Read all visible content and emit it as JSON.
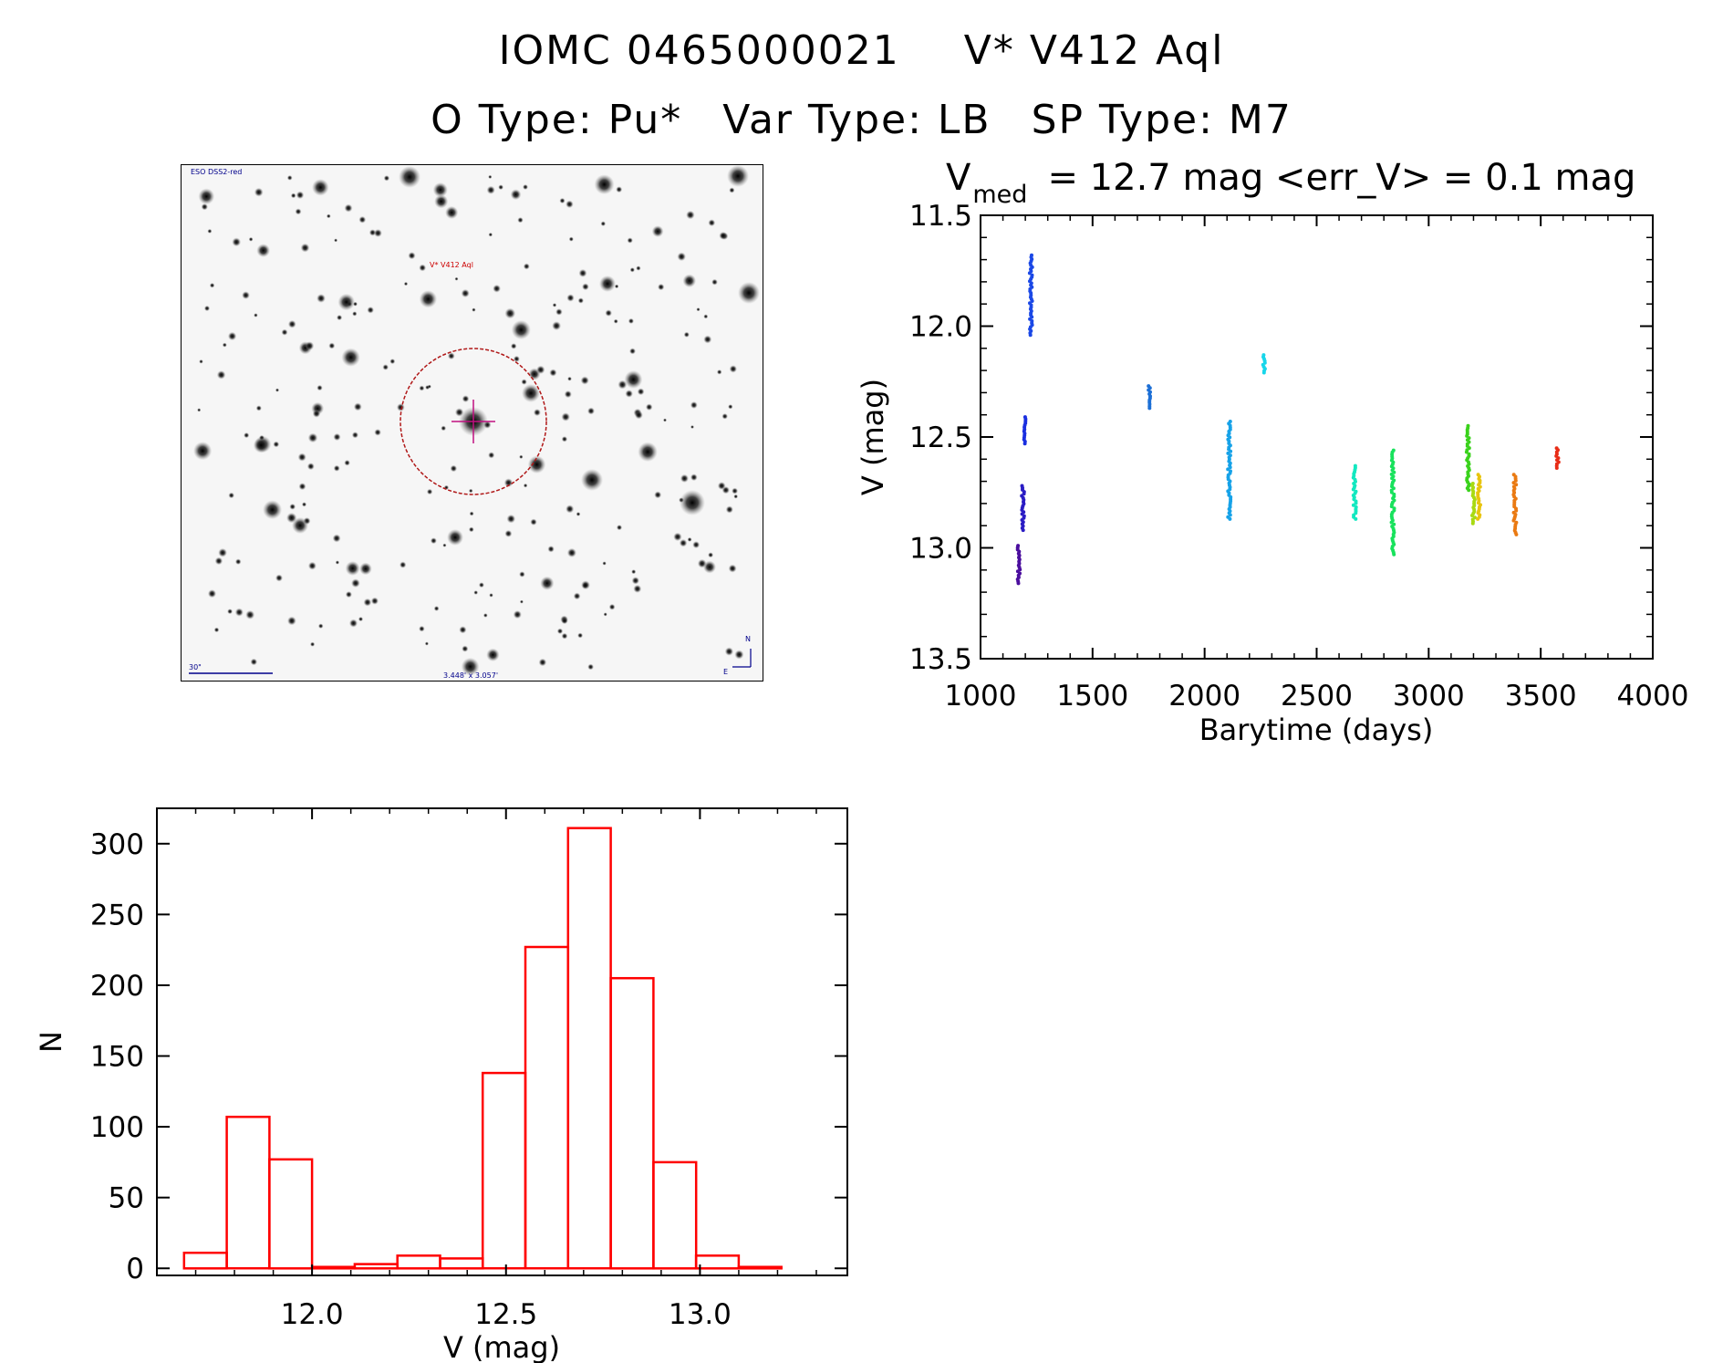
{
  "header": {
    "object_id": "IOMC 0465000021",
    "star_name": "V* V412 Aql",
    "o_type": "O Type: Pu*",
    "var_type": "Var Type: LB",
    "sp_type": "SP Type: M7"
  },
  "image_stamp": {
    "survey_label": "ESO DSS2-red",
    "object_label": "V* V412 Aql",
    "scale_label": "30\"",
    "size_label": "3.448' x 3.057'",
    "compass_n": "N",
    "compass_e": "E"
  },
  "chart_data": [
    {
      "type": "scatter",
      "title": "V_med = 12.7 mag <err_V> = 0.1 mag",
      "title_parts": {
        "v": "V",
        "sub": "med",
        "rest": "= 12.7 mag <err_V> = 0.1 mag"
      },
      "xlabel": "Barytime (days)",
      "ylabel": "V (mag)",
      "xlim": [
        1000,
        4000
      ],
      "ylim": [
        13.5,
        11.5
      ],
      "xticks": [
        1000,
        1500,
        2000,
        2500,
        3000,
        3500,
        4000
      ],
      "yticks": [
        11.5,
        12.0,
        12.5,
        13.0,
        13.5
      ],
      "ytick_labels": [
        "11.5",
        "12.0",
        "12.5",
        "13.0",
        "13.5"
      ],
      "series": [
        {
          "name": "1170",
          "color": "#4b0e9e",
          "x": 1170,
          "y": [
            12.99,
            13.16
          ]
        },
        {
          "name": "1190",
          "color": "#2a1cc4",
          "x": 1190,
          "y": [
            12.72,
            12.92
          ]
        },
        {
          "name": "1198",
          "color": "#1a2fe0",
          "x": 1198,
          "y": [
            12.41,
            12.53
          ]
        },
        {
          "name": "1225",
          "color": "#1b48e6",
          "x": 1225,
          "y": [
            11.68,
            12.04
          ]
        },
        {
          "name": "1755",
          "color": "#1c6fd6",
          "x": 1755,
          "y": [
            12.27,
            12.37
          ]
        },
        {
          "name": "2110",
          "color": "#16a2e8",
          "x": 2110,
          "y": [
            12.43,
            12.87
          ]
        },
        {
          "name": "2265",
          "color": "#17d6ea",
          "x": 2265,
          "y": [
            12.13,
            12.21
          ]
        },
        {
          "name": "2670",
          "color": "#12e8c0",
          "x": 2670,
          "y": [
            12.63,
            12.87
          ]
        },
        {
          "name": "2840",
          "color": "#18e25c",
          "x": 2840,
          "y": [
            12.56,
            13.03
          ]
        },
        {
          "name": "3175",
          "color": "#3ad21c",
          "x": 3175,
          "y": [
            12.45,
            12.74
          ]
        },
        {
          "name": "3200",
          "color": "#a8da12",
          "x": 3200,
          "y": [
            12.71,
            12.89
          ]
        },
        {
          "name": "3225",
          "color": "#e8c40e",
          "x": 3225,
          "y": [
            12.67,
            12.87
          ]
        },
        {
          "name": "3385",
          "color": "#ea7a12",
          "x": 3385,
          "y": [
            12.67,
            12.94
          ]
        },
        {
          "name": "3575",
          "color": "#e82c16",
          "x": 3575,
          "y": [
            12.55,
            12.64
          ]
        }
      ]
    },
    {
      "type": "bar",
      "title": "",
      "xlabel": "V (mag)",
      "ylabel": "N",
      "xlim": [
        11.6,
        13.38
      ],
      "ylim": [
        -5,
        325
      ],
      "xticks": [
        12.0,
        12.5,
        13.0
      ],
      "xtick_labels": [
        "12.0",
        "12.5",
        "13.0"
      ],
      "yticks": [
        0,
        50,
        100,
        150,
        200,
        250,
        300
      ],
      "ytick_labels": [
        "0",
        "50",
        "100",
        "150",
        "200",
        "250",
        "300"
      ],
      "bin_edges": [
        11.67,
        11.78,
        11.89,
        12.0,
        12.11,
        12.22,
        12.33,
        12.44,
        12.55,
        12.66,
        12.77,
        12.88,
        12.99,
        13.1,
        13.21
      ],
      "values": [
        11,
        107,
        77,
        1,
        3,
        9,
        7,
        138,
        227,
        311,
        205,
        75,
        9,
        1
      ],
      "color": "#ff0000"
    }
  ]
}
